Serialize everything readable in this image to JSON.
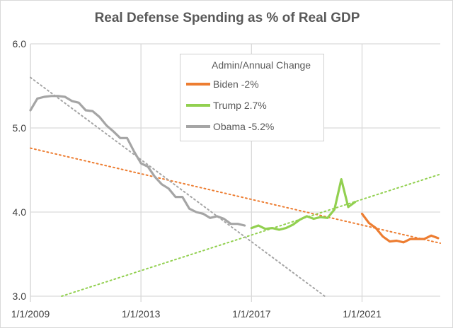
{
  "chart_data": {
    "type": "line",
    "title": "Real Defense Spending as % of Real GDP",
    "xlabel": "",
    "ylabel": "",
    "xlim": [
      2009,
      2023.83
    ],
    "ylim": [
      3.0,
      6.0
    ],
    "y_ticks": [
      "3.0",
      "4.0",
      "5.0",
      "6.0"
    ],
    "x_ticks": [
      {
        "value": 2009,
        "label": "1/1/2009"
      },
      {
        "value": 2013,
        "label": "1/1/2013"
      },
      {
        "value": 2017,
        "label": "1/1/2017"
      },
      {
        "value": 2021,
        "label": "1/1/2021"
      }
    ],
    "grid": true,
    "legend": {
      "title": "Admin/Annual Change",
      "placement": "top-center"
    },
    "series": [
      {
        "name": "Biden -2%",
        "color": "#ed7d31",
        "x_start": 2021.0,
        "step": 0.25,
        "values": [
          3.98,
          3.87,
          3.81,
          3.71,
          3.65,
          3.66,
          3.64,
          3.68,
          3.68,
          3.68,
          3.72,
          3.69
        ]
      },
      {
        "name": "Trump 2.7%",
        "color": "#92d050",
        "x_start": 2017.0,
        "step": 0.25,
        "values": [
          3.81,
          3.84,
          3.8,
          3.81,
          3.79,
          3.81,
          3.85,
          3.91,
          3.95,
          3.92,
          3.94,
          3.93,
          4.03,
          4.39,
          4.06,
          4.12
        ]
      },
      {
        "name": "Obama -5.2%",
        "color": "#a5a5a5",
        "x_start": 2009.0,
        "step": 0.25,
        "values": [
          5.21,
          5.35,
          5.37,
          5.38,
          5.38,
          5.37,
          5.32,
          5.3,
          5.21,
          5.2,
          5.13,
          5.03,
          4.96,
          4.88,
          4.88,
          4.72,
          4.58,
          4.54,
          4.42,
          4.33,
          4.28,
          4.18,
          4.18,
          4.04,
          4.0,
          3.98,
          3.93,
          3.95,
          3.92,
          3.86,
          3.86,
          3.84
        ]
      }
    ],
    "trendlines": [
      {
        "series": "Biden -2%",
        "color": "#ed7d31",
        "x": [
          2009.0,
          2023.83
        ],
        "y": [
          4.76,
          3.63
        ]
      },
      {
        "series": "Trump 2.7%",
        "color": "#92d050",
        "x": [
          2010.13,
          2023.83
        ],
        "y": [
          3.0,
          4.45
        ]
      },
      {
        "series": "Obama -5.2%",
        "color": "#a5a5a5",
        "x": [
          2009.0,
          2019.65
        ],
        "y": [
          5.6,
          3.0
        ]
      }
    ]
  }
}
